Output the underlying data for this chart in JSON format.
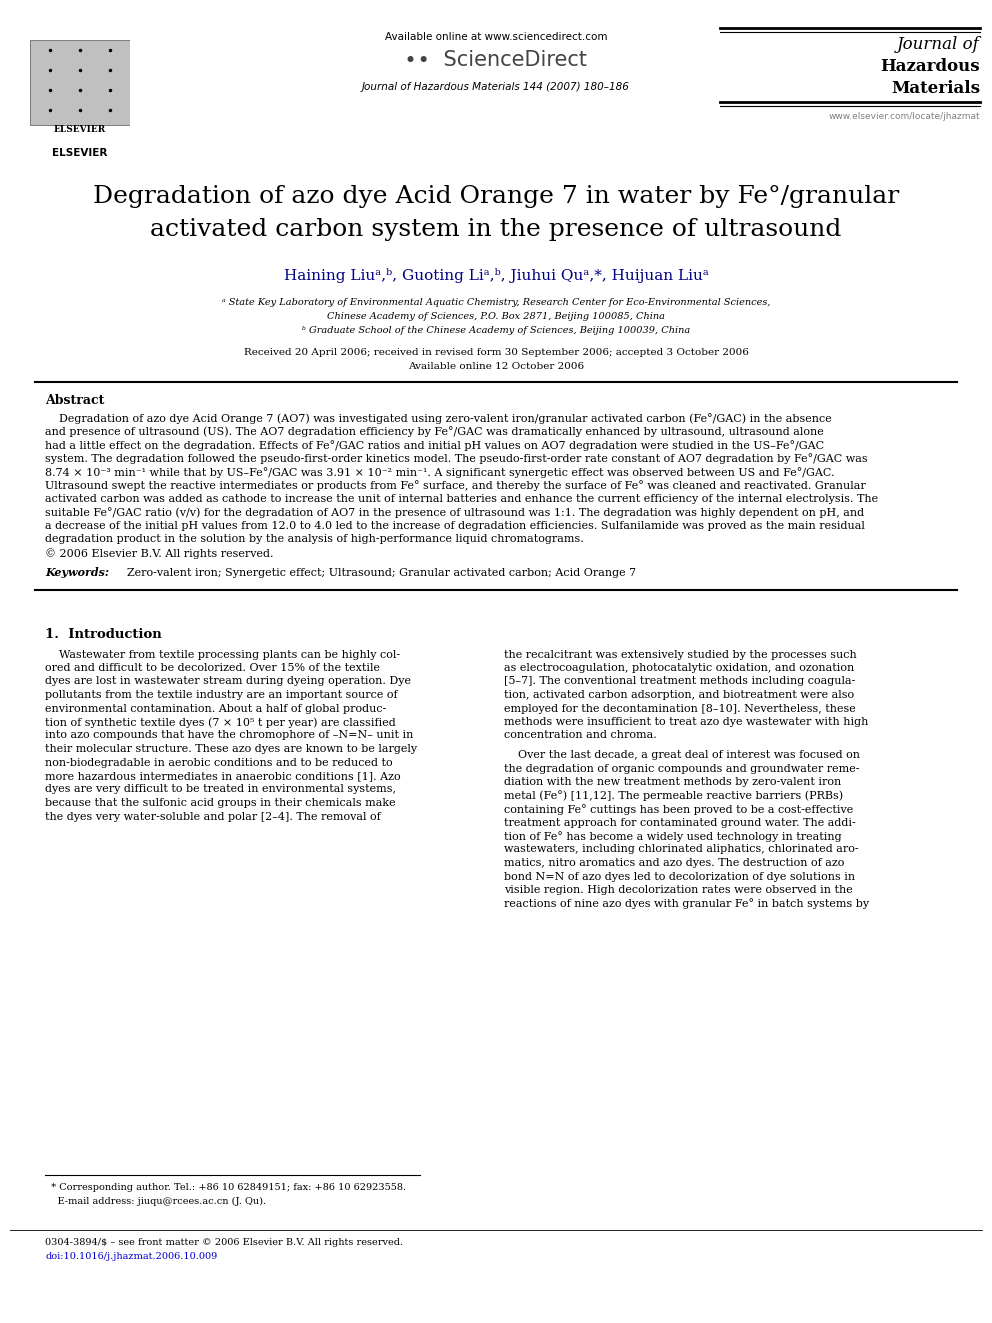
{
  "title_line1": "Degradation of azo dye Acid Orange 7 in water by Fe°/granular",
  "title_line2": "activated carbon system in the presence of ultrasound",
  "author_text": "Haining Liuᵃ,ᵇ, Guoting Liᵃ,ᵇ, Jiuhui Quᵃ,*, Huijuan Liuᵃ",
  "affil_a": "ᵃ State Key Laboratory of Environmental Aquatic Chemistry, Research Center for Eco-Environmental Sciences,",
  "affil_a2": "Chinese Academy of Sciences, P.O. Box 2871, Beijing 100085, China",
  "affil_b": "ᵇ Graduate School of the Chinese Academy of Sciences, Beijing 100039, China",
  "received": "Received 20 April 2006; received in revised form 30 September 2006; accepted 3 October 2006",
  "available": "Available online 12 October 2006",
  "journal_header": "Journal of Hazardous Materials 144 (2007) 180–186",
  "journal_name_line1": "Journal of",
  "journal_name_line2": "Hazardous",
  "journal_name_line3": "Materials",
  "available_online": "Available online at www.sciencedirect.com",
  "sciencedirect": "•  ScienceDirect",
  "elsevier_text": "ELSEVIER",
  "website": "www.elsevier.com/locate/jhazmat",
  "abstract_title": "Abstract",
  "abstract_lines": [
    "    Degradation of azo dye Acid Orange 7 (AO7) was investigated using zero-valent iron/granular activated carbon (Fe°/GAC) in the absence",
    "and presence of ultrasound (US). The AO7 degradation efficiency by Fe°/GAC was dramatically enhanced by ultrasound, ultrasound alone",
    "had a little effect on the degradation. Effects of Fe°/GAC ratios and initial pH values on AO7 degradation were studied in the US–Fe°/GAC",
    "system. The degradation followed the pseudo-first-order kinetics model. The pseudo-first-order rate constant of AO7 degradation by Fe°/GAC was",
    "8.74 × 10⁻³ min⁻¹ while that by US–Fe°/GAC was 3.91 × 10⁻² min⁻¹. A significant synergetic effect was observed between US and Fe°/GAC.",
    "Ultrasound swept the reactive intermediates or products from Fe° surface, and thereby the surface of Fe° was cleaned and reactivated. Granular",
    "activated carbon was added as cathode to increase the unit of internal batteries and enhance the current efficiency of the internal electrolysis. The",
    "suitable Fe°/GAC ratio (v/v) for the degradation of AO7 in the presence of ultrasound was 1:1. The degradation was highly dependent on pH, and",
    "a decrease of the initial pH values from 12.0 to 4.0 led to the increase of degradation efficiencies. Sulfanilamide was proved as the main residual",
    "degradation product in the solution by the analysis of high-performance liquid chromatograms.",
    "© 2006 Elsevier B.V. All rights reserved."
  ],
  "keywords_label": "Keywords:",
  "keywords_text": "  Zero-valent iron; Synergetic effect; Ultrasound; Granular activated carbon; Acid Orange 7",
  "section1_title": "1.  Introduction",
  "col1_lines": [
    "    Wastewater from textile processing plants can be highly col-",
    "ored and difficult to be decolorized. Over 15% of the textile",
    "dyes are lost in wastewater stream during dyeing operation. Dye",
    "pollutants from the textile industry are an important source of",
    "environmental contamination. About a half of global produc-",
    "tion of synthetic textile dyes (7 × 10⁵ t per year) are classified",
    "into azo compounds that have the chromophore of –N=N– unit in",
    "their molecular structure. These azo dyes are known to be largely",
    "non-biodegradable in aerobic conditions and to be reduced to",
    "more hazardous intermediates in anaerobic conditions [1]. Azo",
    "dyes are very difficult to be treated in environmental systems,",
    "because that the sulfonic acid groups in their chemicals make",
    "the dyes very water-soluble and polar [2–4]. The removal of"
  ],
  "col2_lines_p1": [
    "the recalcitrant was extensively studied by the processes such",
    "as electrocoagulation, photocatalytic oxidation, and ozonation",
    "[5–7]. The conventional treatment methods including coagula-",
    "tion, activated carbon adsorption, and biotreatment were also",
    "employed for the decontamination [8–10]. Nevertheless, these",
    "methods were insufficient to treat azo dye wastewater with high",
    "concentration and chroma."
  ],
  "col2_lines_p2": [
    "    Over the last decade, a great deal of interest was focused on",
    "the degradation of organic compounds and groundwater reme-",
    "diation with the new treatment methods by zero-valent iron",
    "metal (Fe°) [11,12]. The permeable reactive barriers (PRBs)",
    "containing Fe° cuttings has been proved to be a cost-effective",
    "treatment approach for contaminated ground water. The addi-",
    "tion of Fe° has become a widely used technology in treating",
    "wastewaters, including chlorinated aliphatics, chlorinated aro-",
    "matics, nitro aromatics and azo dyes. The destruction of azo",
    "bond N=N of azo dyes led to decolorization of dye solutions in",
    "visible region. High decolorization rates were observed in the",
    "reactions of nine azo dyes with granular Fe° in batch systems by"
  ],
  "footnote_star": "  * Corresponding author. Tel.: +86 10 62849151; fax: +86 10 62923558.",
  "footnote_email": "    E-mail address: jiuqu@rcees.ac.cn (J. Qu).",
  "footnote_issn": "0304-3894/$ – see front matter © 2006 Elsevier B.V. All rights reserved.",
  "footnote_doi": "doi:10.1016/j.jhazmat.2006.10.009",
  "bg_color": "#ffffff",
  "text_color": "#000000",
  "navy_color": "#000080",
  "blue_color": "#0000cc"
}
